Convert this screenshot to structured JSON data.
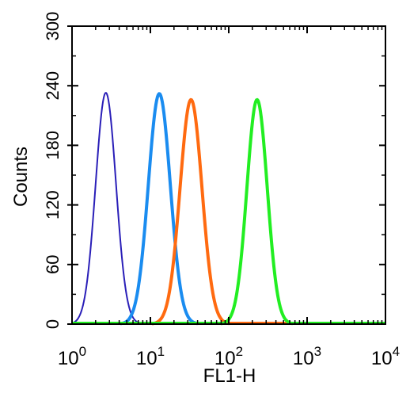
{
  "chart_data": {
    "type": "line",
    "xlabel": "FL1-H",
    "ylabel": "Counts",
    "x_scale": "log",
    "xlim": [
      1,
      10000
    ],
    "ylim": [
      0,
      300
    ],
    "x_ticks": [
      {
        "value": 1,
        "base": "10",
        "exp": "0"
      },
      {
        "value": 10,
        "base": "10",
        "exp": "1"
      },
      {
        "value": 100,
        "base": "10",
        "exp": "2"
      },
      {
        "value": 1000,
        "base": "10",
        "exp": "3"
      },
      {
        "value": 10000,
        "base": "10",
        "exp": "4"
      }
    ],
    "y_ticks": [
      "0",
      "60",
      "120",
      "180",
      "240",
      "300"
    ],
    "grid": false,
    "series": [
      {
        "color": "#2a1fb8",
        "stroke": 2,
        "peak_x": 2.7,
        "peak_y": 233,
        "log_sigma": 0.13
      },
      {
        "color": "#1a8cf0",
        "stroke": 4,
        "peak_x": 13,
        "peak_y": 232,
        "log_sigma": 0.14
      },
      {
        "color": "#ff6a10",
        "stroke": 4,
        "peak_x": 33,
        "peak_y": 226,
        "log_sigma": 0.14
      },
      {
        "color": "#22ee22",
        "stroke": 4,
        "peak_x": 230,
        "peak_y": 226,
        "log_sigma": 0.13
      }
    ]
  }
}
